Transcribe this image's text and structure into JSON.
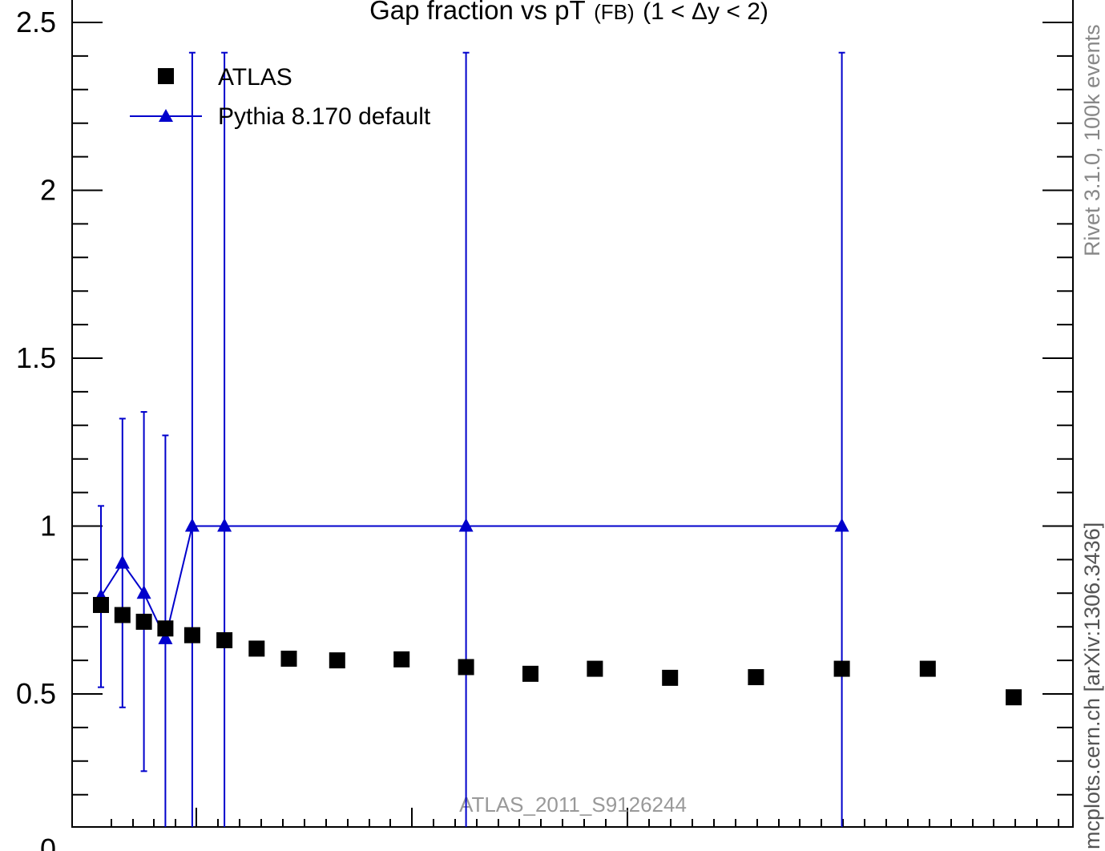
{
  "chart_data": {
    "type": "scatter",
    "title_main": "Gap fraction vs pT",
    "title_small": "(FB)",
    "title_range": "(1 < Δy < 2)",
    "xlabel": "",
    "ylabel": "",
    "ylim": [
      0.1,
      2.55
    ],
    "y_ticks": [
      {
        "value": 0.5,
        "label": "0.5"
      },
      {
        "value": 1,
        "label": "1"
      },
      {
        "value": 1.5,
        "label": "1.5"
      },
      {
        "value": 2,
        "label": "2"
      },
      {
        "value": 2.5,
        "label": "2.5"
      }
    ],
    "y_tick_partial": "0",
    "legend_placement": "top-left",
    "watermark": "ATLAS_2011_S9126244",
    "side_label_top": "Rivet 3.1.0,  100k events",
    "side_label_bottom": "mcplots.cern.ch [arXiv:1306.3436]",
    "colors": {
      "data": "#000000",
      "mc": "#0000cc",
      "watermark": "#999999"
    },
    "series": [
      {
        "name": "ATLAS",
        "marker": "square",
        "points": [
          {
            "x": 1,
            "y": 0.765
          },
          {
            "x": 2,
            "y": 0.735
          },
          {
            "x": 3,
            "y": 0.715
          },
          {
            "x": 4,
            "y": 0.695
          },
          {
            "x": 5.25,
            "y": 0.675
          },
          {
            "x": 6.75,
            "y": 0.66
          },
          {
            "x": 8.25,
            "y": 0.635
          },
          {
            "x": 9.75,
            "y": 0.605
          },
          {
            "x": 12,
            "y": 0.6
          },
          {
            "x": 15,
            "y": 0.603
          },
          {
            "x": 18,
            "y": 0.58
          },
          {
            "x": 21,
            "y": 0.56
          },
          {
            "x": 24,
            "y": 0.575
          },
          {
            "x": 27.5,
            "y": 0.548
          },
          {
            "x": 31.5,
            "y": 0.55
          },
          {
            "x": 35.5,
            "y": 0.575
          },
          {
            "x": 39.5,
            "y": 0.575
          },
          {
            "x": 43.5,
            "y": 0.49
          }
        ]
      },
      {
        "name": "Pythia 8.170 default",
        "marker": "triangle",
        "points": [
          {
            "x": 1,
            "y": 0.79,
            "ylo": 0.52,
            "yhi": 1.06
          },
          {
            "x": 2,
            "y": 0.89,
            "ylo": 0.46,
            "yhi": 1.32
          },
          {
            "x": 3,
            "y": 0.8,
            "ylo": 0.27,
            "yhi": 1.34
          },
          {
            "x": 4,
            "y": 0.665,
            "ylo": 0.06,
            "yhi": 1.27
          },
          {
            "x": 5.25,
            "y": 1.0,
            "ylo": -0.45,
            "yhi": 2.41
          },
          {
            "x": 6.75,
            "y": 1.0,
            "ylo": -0.45,
            "yhi": 2.41
          },
          {
            "x": 18,
            "y": 1.0,
            "ylo": -0.45,
            "yhi": 2.41
          },
          {
            "x": 35.5,
            "y": 1.0,
            "ylo": -0.45,
            "yhi": 2.41
          }
        ]
      }
    ]
  }
}
